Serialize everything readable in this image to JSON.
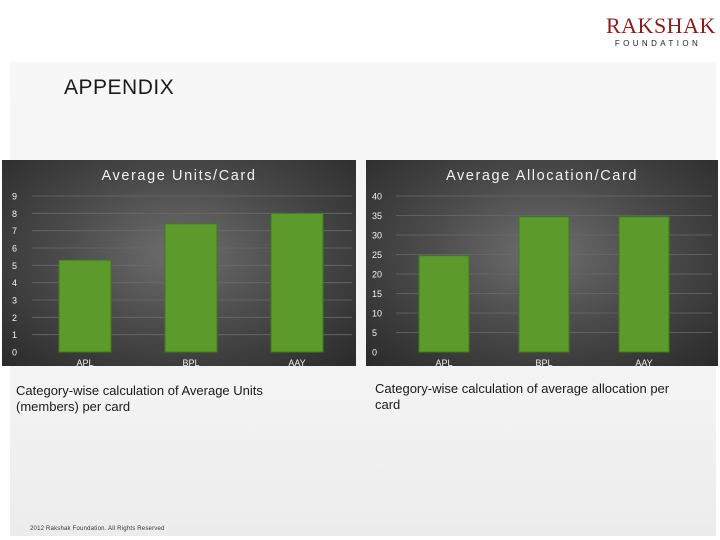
{
  "brand": {
    "name": "RAKSHAK",
    "subtitle": "FOUNDATION"
  },
  "page": {
    "title": "APPENDIX"
  },
  "colors": {
    "bar": "#5c9a2c",
    "bar_edge": "#3f7a1a",
    "grid": "#6a6a6a",
    "text": "#f2f2f2"
  },
  "chart_data": [
    {
      "type": "bar",
      "title": "Average Units/Card",
      "categories": [
        "APL",
        "BPL",
        "AAY"
      ],
      "values": [
        5.3,
        7.4,
        8.0
      ],
      "ylim": [
        0,
        9
      ],
      "yticks": [
        0,
        1,
        2,
        3,
        4,
        5,
        6,
        7,
        8,
        9
      ],
      "xlabel": "",
      "ylabel": "",
      "grid": true,
      "caption": "Category-wise calculation of Average Units (members) per card"
    },
    {
      "type": "bar",
      "title": "Average Allocation/Card",
      "categories": [
        "APL",
        "BPL",
        "AAY"
      ],
      "values": [
        24.7,
        34.7,
        34.7
      ],
      "ylim": [
        0,
        40
      ],
      "yticks": [
        0,
        5,
        10,
        15,
        20,
        25,
        30,
        35,
        40
      ],
      "xlabel": "",
      "ylabel": "",
      "grid": true,
      "caption": "Category-wise calculation of average allocation per card"
    }
  ],
  "footer": {
    "text": "2012 Rakshak Foundation. All Rights Reserved"
  }
}
